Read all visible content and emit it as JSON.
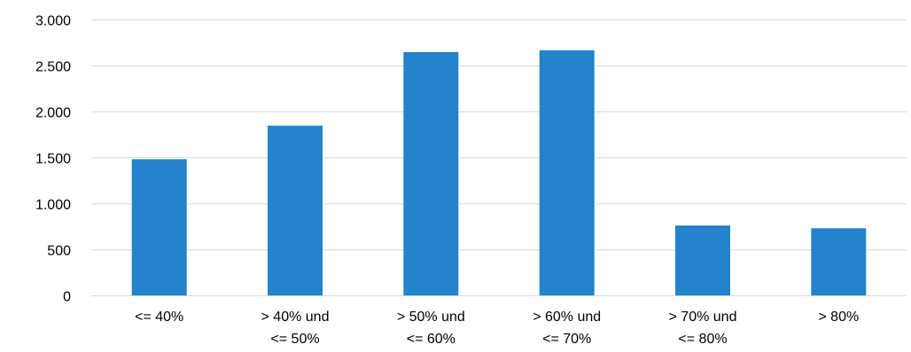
{
  "chart_data": {
    "type": "bar",
    "categories": [
      [
        "<= 40%"
      ],
      [
        "> 40% und",
        "<= 50%"
      ],
      [
        "> 50% und",
        "<= 60%"
      ],
      [
        "> 60% und",
        "<= 70%"
      ],
      [
        "> 70% und",
        "<= 80%"
      ],
      [
        "> 80%"
      ]
    ],
    "values": [
      1480,
      1845,
      2645,
      2665,
      760,
      730
    ],
    "ylim": [
      0,
      3000
    ],
    "yticks": [
      0,
      500,
      1000,
      1500,
      2000,
      2500,
      3000
    ],
    "ytick_labels": [
      "0",
      "500",
      "1.000",
      "1.500",
      "2.000",
      "2.500",
      "3.000"
    ],
    "grid": true,
    "legend": "none",
    "bar_color": "#2383cc",
    "title": "",
    "xlabel": "",
    "ylabel": ""
  }
}
